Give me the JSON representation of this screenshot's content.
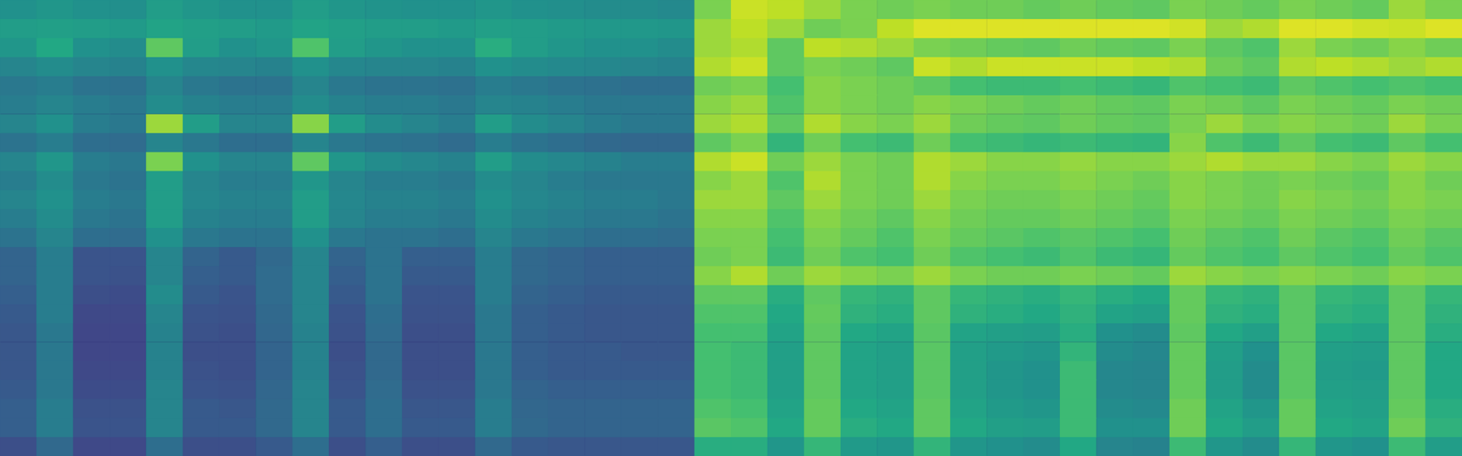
{
  "chart_data": {
    "type": "heatmap",
    "tick_labels": false,
    "grid": false,
    "color_range": [
      0,
      1
    ],
    "cells": [
      [
        0.5,
        0.52,
        0.5,
        0.49,
        0.55,
        0.52,
        0.5,
        0.5,
        0.55,
        0.52,
        0.51,
        0.5,
        0.5,
        0.52,
        0.5,
        0.49,
        0.48,
        0.48,
        0.47,
        0.8,
        0.92,
        0.9,
        0.85,
        0.8,
        0.78,
        0.8,
        0.78,
        0.78,
        0.76,
        0.78,
        0.76,
        0.75,
        0.8,
        0.78,
        0.76,
        0.8,
        0.78,
        0.76,
        0.85,
        0.8
      ],
      [
        0.55,
        0.56,
        0.55,
        0.54,
        0.58,
        0.56,
        0.55,
        0.54,
        0.58,
        0.56,
        0.55,
        0.55,
        0.54,
        0.56,
        0.55,
        0.54,
        0.53,
        0.53,
        0.52,
        0.85,
        0.9,
        0.85,
        0.78,
        0.8,
        0.9,
        0.95,
        0.95,
        0.95,
        0.95,
        0.95,
        0.95,
        0.95,
        0.93,
        0.85,
        0.88,
        0.95,
        0.95,
        0.93,
        0.92,
        0.95
      ],
      [
        0.52,
        0.6,
        0.5,
        0.48,
        0.75,
        0.55,
        0.5,
        0.52,
        0.72,
        0.55,
        0.52,
        0.5,
        0.5,
        0.62,
        0.55,
        0.52,
        0.5,
        0.5,
        0.48,
        0.85,
        0.88,
        0.75,
        0.9,
        0.88,
        0.85,
        0.8,
        0.78,
        0.76,
        0.75,
        0.78,
        0.76,
        0.75,
        0.8,
        0.75,
        0.72,
        0.85,
        0.8,
        0.78,
        0.82,
        0.78
      ],
      [
        0.45,
        0.48,
        0.45,
        0.44,
        0.5,
        0.46,
        0.45,
        0.44,
        0.5,
        0.46,
        0.45,
        0.45,
        0.44,
        0.5,
        0.48,
        0.47,
        0.46,
        0.45,
        0.44,
        0.88,
        0.92,
        0.75,
        0.8,
        0.78,
        0.75,
        0.92,
        0.88,
        0.92,
        0.92,
        0.92,
        0.92,
        0.9,
        0.88,
        0.78,
        0.75,
        0.88,
        0.9,
        0.88,
        0.85,
        0.88
      ],
      [
        0.4,
        0.42,
        0.38,
        0.37,
        0.45,
        0.4,
        0.38,
        0.38,
        0.45,
        0.4,
        0.38,
        0.38,
        0.37,
        0.42,
        0.4,
        0.38,
        0.37,
        0.36,
        0.36,
        0.78,
        0.8,
        0.7,
        0.82,
        0.8,
        0.78,
        0.75,
        0.7,
        0.68,
        0.68,
        0.7,
        0.68,
        0.66,
        0.72,
        0.7,
        0.68,
        0.75,
        0.72,
        0.7,
        0.72,
        0.7
      ],
      [
        0.42,
        0.45,
        0.42,
        0.4,
        0.48,
        0.44,
        0.42,
        0.42,
        0.48,
        0.44,
        0.42,
        0.42,
        0.4,
        0.45,
        0.44,
        0.42,
        0.4,
        0.4,
        0.4,
        0.82,
        0.85,
        0.72,
        0.82,
        0.8,
        0.78,
        0.82,
        0.8,
        0.78,
        0.76,
        0.78,
        0.76,
        0.75,
        0.8,
        0.78,
        0.75,
        0.8,
        0.78,
        0.76,
        0.8,
        0.78
      ],
      [
        0.45,
        0.5,
        0.42,
        0.4,
        0.85,
        0.55,
        0.45,
        0.45,
        0.82,
        0.55,
        0.48,
        0.45,
        0.42,
        0.55,
        0.48,
        0.45,
        0.42,
        0.4,
        0.4,
        0.85,
        0.88,
        0.75,
        0.88,
        0.82,
        0.8,
        0.85,
        0.78,
        0.76,
        0.75,
        0.78,
        0.76,
        0.75,
        0.8,
        0.85,
        0.8,
        0.82,
        0.8,
        0.78,
        0.85,
        0.8
      ],
      [
        0.38,
        0.42,
        0.36,
        0.35,
        0.45,
        0.4,
        0.36,
        0.36,
        0.45,
        0.4,
        0.38,
        0.37,
        0.35,
        0.42,
        0.38,
        0.36,
        0.34,
        0.33,
        0.33,
        0.75,
        0.8,
        0.65,
        0.78,
        0.7,
        0.68,
        0.78,
        0.7,
        0.68,
        0.66,
        0.68,
        0.66,
        0.65,
        0.82,
        0.72,
        0.68,
        0.75,
        0.7,
        0.68,
        0.75,
        0.7
      ],
      [
        0.45,
        0.52,
        0.42,
        0.4,
        0.8,
        0.5,
        0.45,
        0.45,
        0.75,
        0.52,
        0.48,
        0.46,
        0.44,
        0.55,
        0.48,
        0.46,
        0.44,
        0.42,
        0.42,
        0.88,
        0.92,
        0.78,
        0.85,
        0.8,
        0.78,
        0.88,
        0.85,
        0.82,
        0.82,
        0.84,
        0.82,
        0.82,
        0.85,
        0.88,
        0.85,
        0.85,
        0.82,
        0.8,
        0.85,
        0.82
      ],
      [
        0.42,
        0.48,
        0.4,
        0.38,
        0.55,
        0.45,
        0.42,
        0.42,
        0.52,
        0.45,
        0.42,
        0.42,
        0.4,
        0.48,
        0.45,
        0.42,
        0.4,
        0.4,
        0.4,
        0.82,
        0.85,
        0.72,
        0.88,
        0.8,
        0.78,
        0.88,
        0.82,
        0.8,
        0.8,
        0.82,
        0.8,
        0.78,
        0.82,
        0.8,
        0.78,
        0.8,
        0.78,
        0.76,
        0.82,
        0.78
      ],
      [
        0.45,
        0.5,
        0.42,
        0.4,
        0.55,
        0.46,
        0.44,
        0.44,
        0.55,
        0.46,
        0.44,
        0.44,
        0.42,
        0.5,
        0.46,
        0.44,
        0.42,
        0.42,
        0.4,
        0.85,
        0.85,
        0.75,
        0.85,
        0.8,
        0.78,
        0.85,
        0.8,
        0.78,
        0.78,
        0.8,
        0.78,
        0.76,
        0.82,
        0.8,
        0.78,
        0.82,
        0.8,
        0.78,
        0.82,
        0.8
      ],
      [
        0.42,
        0.48,
        0.4,
        0.38,
        0.55,
        0.44,
        0.42,
        0.42,
        0.55,
        0.45,
        0.42,
        0.42,
        0.4,
        0.48,
        0.44,
        0.42,
        0.4,
        0.4,
        0.38,
        0.82,
        0.82,
        0.72,
        0.82,
        0.78,
        0.75,
        0.82,
        0.78,
        0.76,
        0.76,
        0.78,
        0.76,
        0.74,
        0.8,
        0.78,
        0.76,
        0.8,
        0.78,
        0.76,
        0.8,
        0.78
      ],
      [
        0.38,
        0.45,
        0.36,
        0.35,
        0.5,
        0.4,
        0.38,
        0.38,
        0.5,
        0.4,
        0.38,
        0.38,
        0.36,
        0.45,
        0.4,
        0.38,
        0.36,
        0.36,
        0.35,
        0.8,
        0.8,
        0.7,
        0.8,
        0.76,
        0.72,
        0.8,
        0.76,
        0.74,
        0.72,
        0.74,
        0.72,
        0.7,
        0.78,
        0.74,
        0.72,
        0.78,
        0.74,
        0.72,
        0.78,
        0.74
      ],
      [
        0.32,
        0.42,
        0.26,
        0.26,
        0.45,
        0.32,
        0.28,
        0.34,
        0.45,
        0.32,
        0.38,
        0.3,
        0.3,
        0.42,
        0.34,
        0.32,
        0.3,
        0.3,
        0.3,
        0.78,
        0.8,
        0.68,
        0.78,
        0.72,
        0.7,
        0.78,
        0.72,
        0.7,
        0.68,
        0.72,
        0.68,
        0.66,
        0.76,
        0.72,
        0.7,
        0.75,
        0.72,
        0.7,
        0.76,
        0.72
      ],
      [
        0.32,
        0.42,
        0.26,
        0.25,
        0.45,
        0.3,
        0.28,
        0.35,
        0.45,
        0.3,
        0.38,
        0.28,
        0.28,
        0.42,
        0.34,
        0.32,
        0.3,
        0.3,
        0.3,
        0.82,
        0.88,
        0.78,
        0.85,
        0.82,
        0.8,
        0.85,
        0.8,
        0.78,
        0.78,
        0.8,
        0.78,
        0.76,
        0.85,
        0.82,
        0.8,
        0.82,
        0.8,
        0.78,
        0.82,
        0.8
      ],
      [
        0.3,
        0.42,
        0.24,
        0.23,
        0.48,
        0.28,
        0.26,
        0.35,
        0.45,
        0.28,
        0.38,
        0.26,
        0.26,
        0.42,
        0.32,
        0.3,
        0.28,
        0.28,
        0.28,
        0.75,
        0.75,
        0.62,
        0.75,
        0.66,
        0.64,
        0.75,
        0.66,
        0.64,
        0.62,
        0.66,
        0.62,
        0.6,
        0.76,
        0.66,
        0.64,
        0.74,
        0.66,
        0.64,
        0.75,
        0.66
      ],
      [
        0.28,
        0.42,
        0.22,
        0.22,
        0.45,
        0.26,
        0.25,
        0.34,
        0.45,
        0.26,
        0.36,
        0.25,
        0.25,
        0.4,
        0.3,
        0.28,
        0.27,
        0.27,
        0.27,
        0.72,
        0.72,
        0.6,
        0.76,
        0.64,
        0.62,
        0.75,
        0.64,
        0.62,
        0.6,
        0.64,
        0.58,
        0.56,
        0.76,
        0.64,
        0.62,
        0.74,
        0.64,
        0.62,
        0.75,
        0.64
      ],
      [
        0.27,
        0.4,
        0.21,
        0.21,
        0.44,
        0.25,
        0.24,
        0.33,
        0.44,
        0.25,
        0.35,
        0.24,
        0.24,
        0.4,
        0.3,
        0.28,
        0.27,
        0.27,
        0.27,
        0.7,
        0.7,
        0.58,
        0.75,
        0.6,
        0.58,
        0.74,
        0.58,
        0.56,
        0.55,
        0.62,
        0.5,
        0.48,
        0.75,
        0.6,
        0.56,
        0.74,
        0.6,
        0.58,
        0.75,
        0.62
      ],
      [
        0.27,
        0.4,
        0.21,
        0.21,
        0.44,
        0.24,
        0.24,
        0.32,
        0.44,
        0.24,
        0.34,
        0.24,
        0.24,
        0.4,
        0.3,
        0.28,
        0.28,
        0.27,
        0.27,
        0.7,
        0.68,
        0.56,
        0.75,
        0.58,
        0.56,
        0.74,
        0.56,
        0.54,
        0.52,
        0.65,
        0.48,
        0.46,
        0.76,
        0.56,
        0.5,
        0.74,
        0.56,
        0.55,
        0.75,
        0.6
      ],
      [
        0.27,
        0.4,
        0.22,
        0.22,
        0.44,
        0.25,
        0.24,
        0.32,
        0.44,
        0.25,
        0.34,
        0.24,
        0.24,
        0.4,
        0.3,
        0.28,
        0.28,
        0.28,
        0.28,
        0.7,
        0.68,
        0.56,
        0.75,
        0.58,
        0.56,
        0.74,
        0.56,
        0.52,
        0.5,
        0.68,
        0.46,
        0.45,
        0.76,
        0.55,
        0.48,
        0.74,
        0.55,
        0.54,
        0.75,
        0.6
      ],
      [
        0.28,
        0.4,
        0.23,
        0.23,
        0.45,
        0.26,
        0.25,
        0.33,
        0.45,
        0.26,
        0.35,
        0.25,
        0.25,
        0.4,
        0.32,
        0.3,
        0.3,
        0.3,
        0.3,
        0.7,
        0.68,
        0.56,
        0.75,
        0.58,
        0.56,
        0.74,
        0.56,
        0.52,
        0.5,
        0.68,
        0.46,
        0.45,
        0.76,
        0.55,
        0.48,
        0.74,
        0.56,
        0.55,
        0.75,
        0.6
      ],
      [
        0.3,
        0.42,
        0.25,
        0.25,
        0.45,
        0.28,
        0.27,
        0.34,
        0.45,
        0.28,
        0.36,
        0.27,
        0.27,
        0.42,
        0.33,
        0.32,
        0.32,
        0.32,
        0.32,
        0.72,
        0.7,
        0.58,
        0.76,
        0.6,
        0.58,
        0.75,
        0.58,
        0.54,
        0.52,
        0.68,
        0.48,
        0.47,
        0.78,
        0.58,
        0.52,
        0.76,
        0.58,
        0.56,
        0.76,
        0.62
      ],
      [
        0.3,
        0.42,
        0.26,
        0.26,
        0.45,
        0.28,
        0.28,
        0.34,
        0.45,
        0.28,
        0.36,
        0.28,
        0.28,
        0.42,
        0.34,
        0.32,
        0.32,
        0.32,
        0.32,
        0.74,
        0.72,
        0.6,
        0.76,
        0.62,
        0.6,
        0.75,
        0.6,
        0.56,
        0.55,
        0.68,
        0.5,
        0.5,
        0.78,
        0.6,
        0.55,
        0.76,
        0.6,
        0.58,
        0.78,
        0.64
      ],
      [
        0.24,
        0.34,
        0.22,
        0.22,
        0.36,
        0.24,
        0.24,
        0.28,
        0.36,
        0.24,
        0.3,
        0.24,
        0.24,
        0.34,
        0.28,
        0.27,
        0.27,
        0.27,
        0.27,
        0.62,
        0.62,
        0.52,
        0.66,
        0.54,
        0.52,
        0.65,
        0.52,
        0.5,
        0.48,
        0.6,
        0.45,
        0.44,
        0.68,
        0.52,
        0.48,
        0.66,
        0.52,
        0.5,
        0.68,
        0.55
      ]
    ]
  }
}
